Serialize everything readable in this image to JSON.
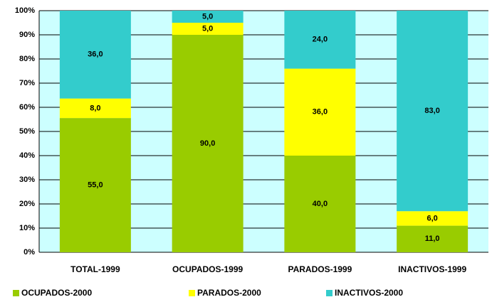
{
  "chart_data": {
    "type": "bar",
    "stacking": "percent",
    "categories": [
      "TOTAL-1999",
      "OCUPADOS-1999",
      "PARADOS-1999",
      "INACTIVOS-1999"
    ],
    "series": [
      {
        "name": "OCUPADOS-2000",
        "color": "#99cc00",
        "values": [
          55,
          90,
          40,
          11
        ],
        "value_labels": [
          "55,0",
          "90,0",
          "40,0",
          "11,0"
        ]
      },
      {
        "name": "PARADOS-2000",
        "color": "#ffff00",
        "values": [
          8,
          5,
          36,
          6
        ],
        "value_labels": [
          "8,0",
          "5,0",
          "36,0",
          "6,0"
        ]
      },
      {
        "name": "INACTIVOS-2000",
        "color": "#33cccc",
        "values": [
          36,
          5,
          24,
          83
        ],
        "value_labels": [
          "36,0",
          "5,0",
          "24,0",
          "83,0"
        ]
      }
    ],
    "ylim": [
      0,
      100
    ],
    "yticks": [
      {
        "value": 0,
        "label": "0%"
      },
      {
        "value": 10,
        "label": "10%"
      },
      {
        "value": 20,
        "label": "20%"
      },
      {
        "value": 30,
        "label": "30%"
      },
      {
        "value": 40,
        "label": "40%"
      },
      {
        "value": 50,
        "label": "50%"
      },
      {
        "value": 60,
        "label": "60%"
      },
      {
        "value": 70,
        "label": "70%"
      },
      {
        "value": 80,
        "label": "80%"
      },
      {
        "value": 90,
        "label": "90%"
      },
      {
        "value": 100,
        "label": "100%"
      }
    ],
    "grid": true,
    "plot_background": "#ccffff",
    "legend": "bottom"
  }
}
